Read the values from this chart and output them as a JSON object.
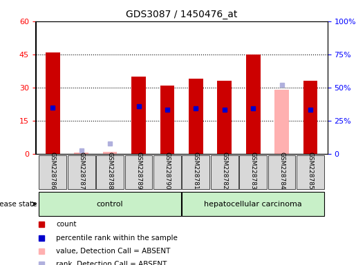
{
  "title": "GDS3087 / 1450476_at",
  "samples": [
    "GSM228786",
    "GSM228787",
    "GSM228788",
    "GSM228789",
    "GSM228790",
    "GSM228781",
    "GSM228782",
    "GSM228783",
    "GSM228784",
    "GSM228785"
  ],
  "count_values": [
    46,
    0,
    0,
    35,
    31,
    34,
    33,
    45,
    0,
    33
  ],
  "count_absent": [
    0,
    0.5,
    1,
    0,
    0,
    0,
    0,
    0,
    29,
    0
  ],
  "rank_values": [
    35,
    0,
    0,
    36,
    33,
    34,
    33,
    34,
    0,
    33
  ],
  "rank_absent": [
    0,
    2.5,
    7.5,
    0,
    0,
    0,
    0,
    0,
    52,
    0
  ],
  "left_ylim": [
    0,
    60
  ],
  "right_ylim": [
    0,
    100
  ],
  "left_yticks": [
    0,
    15,
    30,
    45,
    60
  ],
  "right_yticks": [
    0,
    25,
    50,
    75,
    100
  ],
  "right_yticklabels": [
    "0",
    "25%",
    "50%",
    "75%",
    "100%"
  ],
  "control_samples": [
    "GSM228786",
    "GSM228787",
    "GSM228788",
    "GSM228789",
    "GSM228790"
  ],
  "disease_samples": [
    "GSM228781",
    "GSM228782",
    "GSM228783",
    "GSM228784",
    "GSM228785"
  ],
  "control_label": "control",
  "disease_label": "hepatocellular carcinoma",
  "disease_state_label": "disease state",
  "bar_color_present": "#cc0000",
  "bar_color_absent": "#ffb0b0",
  "rank_color_present": "#0000cc",
  "rank_color_absent": "#b0b0dd",
  "control_bg": "#c8f0c8",
  "disease_bg": "#c8f0c8",
  "legend_items": [
    {
      "label": "count",
      "color": "#cc0000",
      "marker": "s"
    },
    {
      "label": "percentile rank within the sample",
      "color": "#0000cc",
      "marker": "s"
    },
    {
      "label": "value, Detection Call = ABSENT",
      "color": "#ffb0b0",
      "marker": "s"
    },
    {
      "label": "rank, Detection Call = ABSENT",
      "color": "#b0b0dd",
      "marker": "s"
    }
  ],
  "grid_color": "black",
  "grid_style": "dotted"
}
